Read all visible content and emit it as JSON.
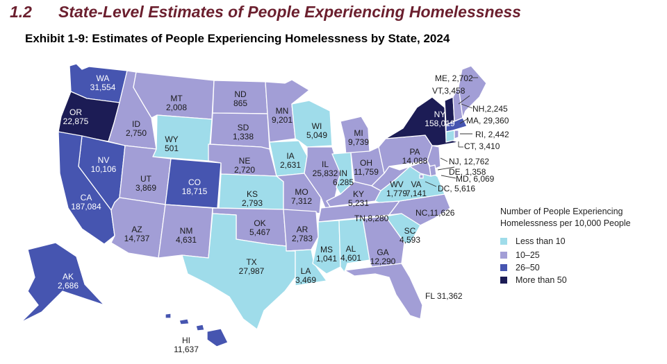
{
  "section": {
    "number": "1.2",
    "title": "State-Level Estimates of People Experiencing Homelessness"
  },
  "exhibit_title": "Exhibit 1-9: Estimates of People Experiencing Homelessness by State, 2024",
  "legend": {
    "title_line1": "Number of People Experiencing",
    "title_line2": "Homelessness per 10,000 People",
    "items": [
      {
        "label": "Less than 10",
        "color": "#9fdcea"
      },
      {
        "label": "10–25",
        "color": "#a29ed6"
      },
      {
        "label": "26–50",
        "color": "#4655b0"
      },
      {
        "label": "More than 50",
        "color": "#1c1c55"
      }
    ]
  },
  "states": [
    {
      "abbr": "WA",
      "value": "31,554",
      "category": 2
    },
    {
      "abbr": "OR",
      "value": "22,875",
      "category": 3
    },
    {
      "abbr": "CA",
      "value": "187,084",
      "category": 2
    },
    {
      "abbr": "NV",
      "value": "10,106",
      "category": 2
    },
    {
      "abbr": "ID",
      "value": "2,750",
      "category": 1
    },
    {
      "abbr": "MT",
      "value": "2,008",
      "category": 1
    },
    {
      "abbr": "WY",
      "value": "501",
      "category": 0
    },
    {
      "abbr": "UT",
      "value": "3,869",
      "category": 1
    },
    {
      "abbr": "CO",
      "value": "18,715",
      "category": 2
    },
    {
      "abbr": "AZ",
      "value": "14,737",
      "category": 1
    },
    {
      "abbr": "NM",
      "value": "4,631",
      "category": 1
    },
    {
      "abbr": "ND",
      "value": "865",
      "category": 1
    },
    {
      "abbr": "SD",
      "value": "1,338",
      "category": 1
    },
    {
      "abbr": "NE",
      "value": "2,720",
      "category": 1
    },
    {
      "abbr": "KS",
      "value": "2,793",
      "category": 0
    },
    {
      "abbr": "OK",
      "value": "5,467",
      "category": 1
    },
    {
      "abbr": "TX",
      "value": "27,987",
      "category": 0
    },
    {
      "abbr": "MN",
      "value": "9,201",
      "category": 1
    },
    {
      "abbr": "IA",
      "value": "2,631",
      "category": 0
    },
    {
      "abbr": "MO",
      "value": "7,312",
      "category": 1
    },
    {
      "abbr": "AR",
      "value": "2,783",
      "category": 1
    },
    {
      "abbr": "LA",
      "value": "3,469",
      "category": 0
    },
    {
      "abbr": "WI",
      "value": "5,049",
      "category": 0
    },
    {
      "abbr": "IL",
      "value": "25,832",
      "category": 1
    },
    {
      "abbr": "MI",
      "value": "9,739",
      "category": 1
    },
    {
      "abbr": "IN",
      "value": "6,285",
      "category": 0
    },
    {
      "abbr": "OH",
      "value": "11,759",
      "category": 1
    },
    {
      "abbr": "KY",
      "value": "5,231",
      "category": 1
    },
    {
      "abbr": "TN",
      "value": "8,280",
      "category": 1
    },
    {
      "abbr": "MS",
      "value": "1,041",
      "category": 0
    },
    {
      "abbr": "AL",
      "value": "4,601",
      "category": 0
    },
    {
      "abbr": "GA",
      "value": "12,290",
      "category": 1
    },
    {
      "abbr": "FL",
      "value": "31,362",
      "category": 1
    },
    {
      "abbr": "SC",
      "value": "4,593",
      "category": 0
    },
    {
      "abbr": "NC",
      "value": "11,626",
      "category": 1
    },
    {
      "abbr": "VA",
      "value": "7,141",
      "category": 0
    },
    {
      "abbr": "WV",
      "value": "1,779",
      "category": 1
    },
    {
      "abbr": "PA",
      "value": "14,088",
      "category": 1
    },
    {
      "abbr": "NY",
      "value": "158,019",
      "category": 3
    },
    {
      "abbr": "ME",
      "value": "2,702",
      "category": 1
    },
    {
      "abbr": "VT",
      "value": "3,458",
      "category": 3
    },
    {
      "abbr": "NH",
      "value": "2,245",
      "category": 1
    },
    {
      "abbr": "MA",
      "value": "29,360",
      "category": 2
    },
    {
      "abbr": "RI",
      "value": "2,442",
      "category": 1
    },
    {
      "abbr": "CT",
      "value": "3,410",
      "category": 0
    },
    {
      "abbr": "NJ",
      "value": "12,762",
      "category": 1
    },
    {
      "abbr": "DE",
      "value": "1,358",
      "category": 1
    },
    {
      "abbr": "MD",
      "value": "6,069",
      "category": 1
    },
    {
      "abbr": "DC",
      "value": "5,616",
      "category": 1
    },
    {
      "abbr": "AK",
      "value": "2,686",
      "category": 2
    },
    {
      "abbr": "HI",
      "value": "11,637",
      "category": 2
    }
  ]
}
